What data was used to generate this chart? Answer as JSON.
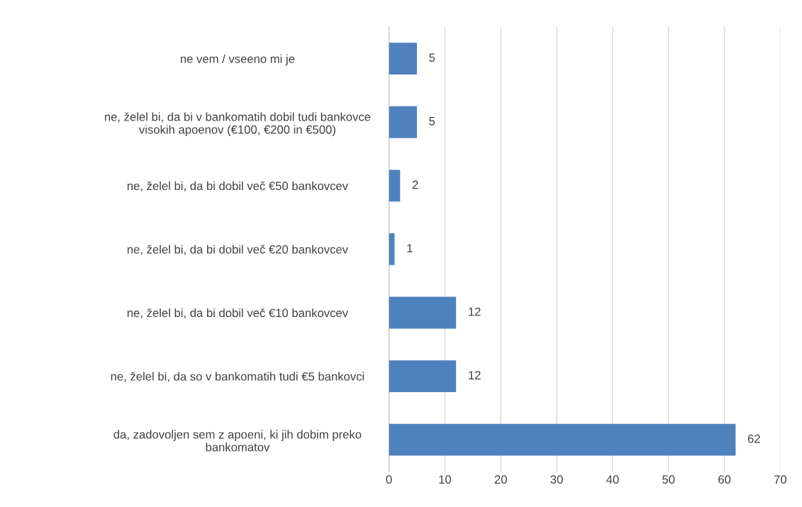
{
  "chart_data": {
    "type": "bar",
    "orientation": "horizontal",
    "categories": [
      "ne vem / vseeno mi je",
      "ne, želel bi, da bi v bankomatih dobil tudi bankovce\nvisokih apoenov (€100, €200 in €500)",
      "ne, želel bi, da bi dobil več €50 bankovcev",
      "ne, želel bi, da bi dobil več €20 bankovcev",
      "ne, želel bi, da bi dobil več €10 bankovcev",
      "ne, želel bi, da so v bankomatih tudi €5 bankovci",
      "da, zadovoljen sem z apoeni, ki jih dobim preko\nbankomatov"
    ],
    "values": [
      5,
      5,
      2,
      1,
      12,
      12,
      62
    ],
    "color": "#4f81bd",
    "xlim": [
      0,
      70
    ],
    "xticks": [
      0,
      10,
      20,
      30,
      40,
      50,
      60,
      70
    ],
    "grid": "x",
    "data_labels": true
  }
}
